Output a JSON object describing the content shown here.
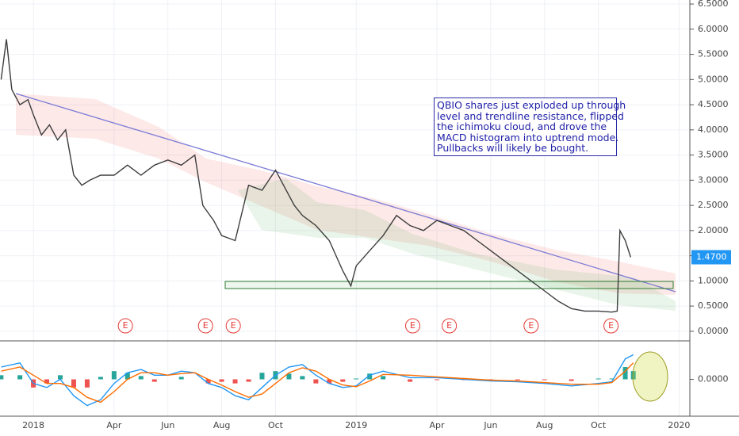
{
  "chart_data": [
    {
      "type": "line",
      "xlim": [
        -1.24,
        24.4
      ],
      "ylim": [
        -0.16,
        6.58
      ],
      "xticks": [
        {
          "value": 0,
          "label": "2018"
        },
        {
          "value": 3,
          "label": "Apr"
        },
        {
          "value": 5,
          "label": "Jun"
        },
        {
          "value": 7,
          "label": "Aug"
        },
        {
          "value": 9,
          "label": "Oct"
        },
        {
          "value": 12,
          "label": "2019"
        },
        {
          "value": 15,
          "label": "Apr"
        },
        {
          "value": 17,
          "label": "Jun"
        },
        {
          "value": 19,
          "label": "Aug"
        },
        {
          "value": 21,
          "label": "Oct"
        },
        {
          "value": 24,
          "label": "2020"
        }
      ],
      "yticks": [
        {
          "value": 0,
          "label": "0.0000"
        },
        {
          "value": 0.5,
          "label": "0.5000"
        },
        {
          "value": 1,
          "label": "1.0000"
        },
        {
          "value": 1.5,
          "label": "1.5000"
        },
        {
          "value": 2,
          "label": "2.0000"
        },
        {
          "value": 2.5,
          "label": "2.5000"
        },
        {
          "value": 3,
          "label": "3.0000"
        },
        {
          "value": 3.5,
          "label": "3.5000"
        },
        {
          "value": 4,
          "label": "4.0000"
        },
        {
          "value": 4.5,
          "label": "4.5000"
        },
        {
          "value": 5,
          "label": "5.0000"
        },
        {
          "value": 5.5,
          "label": "5.5000"
        },
        {
          "value": 6,
          "label": "6.0000"
        },
        {
          "value": 6.5,
          "label": "6.5000"
        }
      ],
      "grid": true,
      "series": [
        {
          "color": "#3d3d3d",
          "x": [
            -1.2,
            -1.0,
            -0.8,
            -0.5,
            -0.2,
            0,
            0.3,
            0.6,
            0.9,
            1.2,
            1.5,
            1.8,
            2.1,
            2.5,
            3,
            3.5,
            4,
            4.5,
            5,
            5.5,
            6,
            6.3,
            6.7,
            7,
            7.5,
            8,
            8.5,
            9,
            9.3,
            9.7,
            10,
            10.5,
            11,
            11.5,
            11.8,
            12,
            12.5,
            13,
            13.5,
            14,
            14.5,
            15,
            15.5,
            16,
            16.5,
            17,
            17.5,
            18,
            18.5,
            19,
            19.5,
            20,
            20.5,
            21,
            21.5,
            21.7,
            21.8,
            22,
            22.2
          ],
          "values": [
            5.0,
            5.8,
            4.8,
            4.5,
            4.6,
            4.3,
            3.9,
            4.1,
            3.8,
            4.0,
            3.1,
            2.9,
            3.0,
            3.1,
            3.1,
            3.3,
            3.1,
            3.3,
            3.4,
            3.3,
            3.5,
            2.5,
            2.2,
            1.9,
            1.8,
            2.9,
            2.8,
            3.2,
            2.9,
            2.5,
            2.3,
            2.1,
            1.8,
            1.2,
            0.9,
            1.3,
            1.6,
            1.9,
            2.3,
            2.1,
            2.0,
            2.2,
            2.1,
            2.0,
            1.8,
            1.6,
            1.4,
            1.2,
            1.0,
            0.8,
            0.6,
            0.45,
            0.4,
            0.4,
            0.38,
            0.4,
            2.0,
            1.8,
            1.47
          ]
        }
      ],
      "last_price": {
        "value": 1.47,
        "label": "1.4700"
      },
      "earnings": [
        {
          "x": 3.42,
          "label": "E"
        },
        {
          "x": 6.4,
          "label": "E"
        },
        {
          "x": 7.43,
          "label": "E"
        },
        {
          "x": 14.1,
          "label": "E"
        },
        {
          "x": 15.46,
          "label": "E"
        },
        {
          "x": 18.5,
          "label": "E"
        },
        {
          "x": 21.47,
          "label": "E"
        }
      ]
    },
    {
      "type": "line",
      "xlim": [
        -1.24,
        24.4
      ],
      "ylim": [
        -0.45,
        0.45
      ],
      "yticks": [
        {
          "value": 0,
          "label": "0.0000"
        }
      ],
      "series": [
        {
          "type": "bar",
          "colors": [
            "#26a69a",
            "#ef5350"
          ],
          "x": [
            -1.2,
            -0.5,
            0,
            0.5,
            1,
            1.5,
            2,
            2.5,
            3,
            3.5,
            4,
            4.5,
            5,
            5.5,
            6,
            6.5,
            7,
            7.5,
            8,
            8.5,
            9,
            9.5,
            10,
            10.5,
            11,
            11.5,
            12,
            12.5,
            13,
            14,
            15,
            16,
            17,
            18,
            19,
            20,
            21,
            21.5,
            22,
            22.3
          ],
          "values": [
            0.05,
            0.05,
            -0.1,
            -0.05,
            0.05,
            -0.1,
            -0.1,
            0.03,
            0.1,
            0.08,
            0.04,
            -0.03,
            0,
            0.03,
            0,
            -0.05,
            -0.03,
            -0.05,
            -0.03,
            0.08,
            0.1,
            0.07,
            0.04,
            -0.05,
            -0.05,
            -0.03,
            0.01,
            0.07,
            0.04,
            -0.03,
            -0.01,
            -0.01,
            -0.01,
            -0.01,
            -0.01,
            -0.02,
            0.01,
            0.01,
            0.15,
            0.1
          ]
        },
        {
          "type": "line",
          "color": "#2196f3",
          "x": [
            -1.2,
            -0.5,
            0,
            0.5,
            1,
            1.5,
            2,
            2.5,
            3,
            3.5,
            4,
            4.5,
            5,
            5.5,
            6,
            6.5,
            7,
            7.5,
            8,
            8.5,
            9,
            9.5,
            10,
            10.5,
            11,
            11.5,
            12,
            12.5,
            13,
            14,
            15,
            16,
            17,
            18,
            19,
            20,
            21,
            21.5,
            22,
            22.3
          ],
          "values": [
            0.15,
            0.2,
            -0.05,
            -0.1,
            0.0,
            -0.2,
            -0.32,
            -0.25,
            -0.05,
            0.08,
            0.12,
            0.05,
            0.05,
            0.1,
            0.08,
            -0.05,
            -0.1,
            -0.2,
            -0.25,
            -0.1,
            0.05,
            0.15,
            0.18,
            0.05,
            -0.05,
            -0.1,
            -0.08,
            0.05,
            0.1,
            0.02,
            0.02,
            0.0,
            -0.02,
            -0.03,
            -0.05,
            -0.08,
            -0.05,
            -0.03,
            0.25,
            0.3
          ]
        },
        {
          "type": "line",
          "color": "#ff6d00",
          "x": [
            -1.2,
            -0.5,
            0,
            0.5,
            1,
            1.5,
            2,
            2.5,
            3,
            3.5,
            4,
            4.5,
            5,
            5.5,
            6,
            6.5,
            7,
            7.5,
            8,
            8.5,
            9,
            9.5,
            10,
            10.5,
            11,
            11.5,
            12,
            12.5,
            13,
            14,
            15,
            16,
            17,
            18,
            19,
            20,
            21,
            21.5,
            22,
            22.3
          ],
          "values": [
            0.1,
            0.15,
            0.05,
            -0.05,
            -0.05,
            -0.1,
            -0.22,
            -0.28,
            -0.15,
            0.0,
            0.08,
            0.08,
            0.05,
            0.07,
            0.08,
            0.0,
            -0.07,
            -0.15,
            -0.22,
            -0.18,
            -0.05,
            0.08,
            0.14,
            0.1,
            0.0,
            -0.07,
            -0.09,
            -0.02,
            0.06,
            0.05,
            0.03,
            0.01,
            -0.01,
            -0.02,
            -0.04,
            -0.06,
            -0.06,
            -0.04,
            0.1,
            0.2
          ]
        }
      ]
    }
  ],
  "annotation": [
    "QBIO shares just exploded up through",
    "level and trendline resistance, flipped",
    "the ichimoku cloud, and drove the",
    "MACD histogram into uptrend mode.",
    "Pullbacks will likely be bought."
  ]
}
